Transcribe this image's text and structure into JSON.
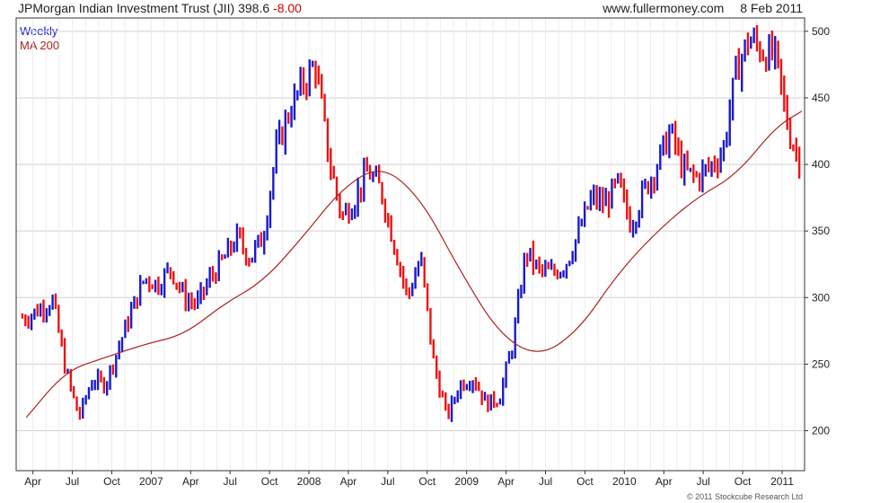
{
  "header": {
    "title": "JPMorgan Indian Investment Trust (JII)",
    "last_price": "398.6",
    "change": "-8.00",
    "source": "www.fullermoney.com",
    "date": "8 Feb 2011"
  },
  "legend": {
    "primary": "Weekly",
    "overlay": "MA 200"
  },
  "copyright": "© 2011 Stockcube Research Ltd",
  "colors": {
    "up_bar": "#1a1acc",
    "down_bar": "#ee1111",
    "ma_line": "#aa2222",
    "grid": "#d0d0d0",
    "axis": "#333333"
  },
  "chart_data": {
    "type": "line",
    "title": "JPMorgan Indian Investment Trust (JII)",
    "xlabel": "",
    "ylabel": "",
    "ylim": [
      170,
      510
    ],
    "yticks": [
      200,
      250,
      300,
      350,
      400,
      450,
      500
    ],
    "grid": true,
    "legend_position": "top-left",
    "x_ticks": [
      "Apr",
      "Jul",
      "Oct",
      "2007",
      "Apr",
      "Jul",
      "Oct",
      "2008",
      "Apr",
      "Jul",
      "Oct",
      "2009",
      "Apr",
      "Jul",
      "Oct",
      "2010",
      "Apr",
      "Jul",
      "Oct",
      "2011"
    ],
    "x_range": [
      "Mar 2006",
      "Feb 2011"
    ],
    "series": [
      {
        "name": "Weekly",
        "style": "candlestick",
        "close_points": [
          [
            "2006-03",
            285
          ],
          [
            "2006-05",
            298
          ],
          [
            "2006-06",
            245
          ],
          [
            "2006-07",
            210
          ],
          [
            "2006-08",
            238
          ],
          [
            "2006-09",
            235
          ],
          [
            "2006-10",
            262
          ],
          [
            "2006-11",
            290
          ],
          [
            "2006-12",
            315
          ],
          [
            "2007-01",
            310
          ],
          [
            "2007-02",
            322
          ],
          [
            "2007-03",
            300
          ],
          [
            "2007-04",
            295
          ],
          [
            "2007-05",
            315
          ],
          [
            "2007-06",
            328
          ],
          [
            "2007-07",
            345
          ],
          [
            "2007-08",
            330
          ],
          [
            "2007-09",
            345
          ],
          [
            "2007-10",
            410
          ],
          [
            "2007-11",
            440
          ],
          [
            "2007-12",
            460
          ],
          [
            "2008-01",
            475
          ],
          [
            "2008-02",
            405
          ],
          [
            "2008-03",
            360
          ],
          [
            "2008-04",
            375
          ],
          [
            "2008-05",
            395
          ],
          [
            "2008-06",
            380
          ],
          [
            "2008-07",
            340
          ],
          [
            "2008-08",
            300
          ],
          [
            "2008-09",
            330
          ],
          [
            "2008-10",
            250
          ],
          [
            "2008-11",
            210
          ],
          [
            "2008-12",
            235
          ],
          [
            "2009-01",
            240
          ],
          [
            "2009-02",
            220
          ],
          [
            "2009-03",
            225
          ],
          [
            "2009-04",
            265
          ],
          [
            "2009-05",
            335
          ],
          [
            "2009-06",
            320
          ],
          [
            "2009-07",
            318
          ],
          [
            "2009-08",
            325
          ],
          [
            "2009-09",
            348
          ],
          [
            "2009-10",
            375
          ],
          [
            "2009-11",
            370
          ],
          [
            "2009-12",
            385
          ],
          [
            "2010-01",
            355
          ],
          [
            "2010-02",
            380
          ],
          [
            "2010-03",
            400
          ],
          [
            "2010-04",
            425
          ],
          [
            "2010-05",
            395
          ],
          [
            "2010-06",
            390
          ],
          [
            "2010-07",
            398
          ],
          [
            "2010-08",
            410
          ],
          [
            "2010-09",
            470
          ],
          [
            "2010-10",
            495
          ],
          [
            "2010-11",
            485
          ],
          [
            "2010-12",
            480
          ],
          [
            "2011-01",
            425
          ],
          [
            "2011-02",
            398.6
          ]
        ]
      },
      {
        "name": "MA 200",
        "style": "line",
        "points": [
          [
            "2006-03",
            210
          ],
          [
            "2006-06",
            245
          ],
          [
            "2006-09",
            255
          ],
          [
            "2006-12",
            265
          ],
          [
            "2007-03",
            272
          ],
          [
            "2007-06",
            295
          ],
          [
            "2007-09",
            312
          ],
          [
            "2007-12",
            345
          ],
          [
            "2008-03",
            382
          ],
          [
            "2008-06",
            400
          ],
          [
            "2008-09",
            375
          ],
          [
            "2008-12",
            320
          ],
          [
            "2009-03",
            272
          ],
          [
            "2009-06",
            255
          ],
          [
            "2009-09",
            275
          ],
          [
            "2009-12",
            318
          ],
          [
            "2010-03",
            350
          ],
          [
            "2010-06",
            375
          ],
          [
            "2010-09",
            392
          ],
          [
            "2010-12",
            428
          ],
          [
            "2011-02",
            440
          ]
        ]
      }
    ]
  }
}
